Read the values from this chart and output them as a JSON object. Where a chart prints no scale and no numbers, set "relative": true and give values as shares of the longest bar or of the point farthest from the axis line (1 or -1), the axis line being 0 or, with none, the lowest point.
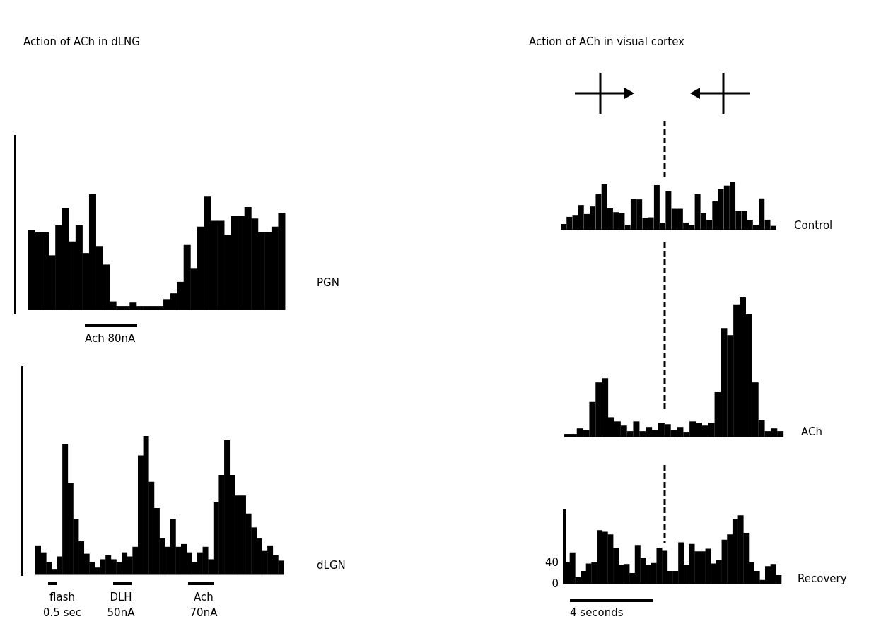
{
  "chart_data": [
    {
      "type": "bar",
      "title": "Action of ACh in dLNG",
      "relative": true,
      "tick_labels": false,
      "color": "#000000",
      "categories": [
        null,
        null,
        null,
        null,
        null,
        null,
        null,
        null,
        null,
        null,
        null,
        null,
        null,
        null,
        null,
        null,
        null,
        null,
        null,
        null,
        null,
        null,
        null,
        null,
        null,
        null,
        null,
        null,
        null,
        null,
        null,
        null,
        null,
        null,
        null,
        null,
        null,
        null
      ],
      "values": [
        0.69,
        0.67,
        0.67,
        0.47,
        0.73,
        0.88,
        0.59,
        0.73,
        0.49,
        1,
        0.55,
        0.39,
        0.07,
        0.03,
        0.03,
        0.06,
        0.03,
        0.03,
        0.03,
        0.03,
        0.09,
        0.14,
        0.24,
        0.56,
        0.36,
        0.72,
        0.98,
        0.77,
        0.77,
        0.65,
        0.81,
        0.81,
        0.89,
        0.79,
        0.67,
        0.67,
        0.72,
        0.84
      ],
      "annotations": [
        "PGN",
        "Ach 80nA"
      ]
    },
    {
      "type": "bar",
      "relative": true,
      "tick_labels": false,
      "color": "#000000",
      "categories": [
        null,
        null,
        null,
        null,
        null,
        null,
        null,
        null,
        null,
        null,
        null,
        null,
        null,
        null,
        null,
        null,
        null,
        null,
        null,
        null,
        null,
        null,
        null,
        null,
        null,
        null,
        null,
        null,
        null,
        null,
        null,
        null,
        null,
        null,
        null,
        null,
        null,
        null,
        null,
        null,
        null,
        null,
        null,
        null,
        null,
        null
      ],
      "values": [
        0.21,
        0.16,
        0.09,
        0.04,
        0.13,
        0.94,
        0.66,
        0.4,
        0.24,
        0.15,
        0.09,
        0.05,
        0.11,
        0.14,
        0.11,
        0.09,
        0.16,
        0.13,
        0.2,
        0.86,
        1,
        0.67,
        0.48,
        0.26,
        0.2,
        0.4,
        0.2,
        0.22,
        0.16,
        0.09,
        0.16,
        0.2,
        0.11,
        0.52,
        0.72,
        0.97,
        0.72,
        0.57,
        0.57,
        0.44,
        0.34,
        0.26,
        0.17,
        0.21,
        0.14,
        0.1
      ],
      "annotations": [
        "dLGN",
        "flash 0.5 sec",
        "DLH 50nA",
        "Ach 70nA"
      ]
    },
    {
      "type": "bar",
      "title": "Action of ACh in visual cortex",
      "relative": true,
      "tick_labels": false,
      "color": "#000000",
      "categories": [
        null,
        null,
        null,
        null,
        null,
        null,
        null,
        null,
        null,
        null,
        null,
        null,
        null,
        null,
        null,
        null,
        null,
        null,
        null,
        null,
        null,
        null,
        null,
        null,
        null,
        null,
        null,
        null,
        null,
        null,
        null,
        null,
        null,
        null,
        null,
        null,
        null
      ],
      "values": [
        0.12,
        0.27,
        0.31,
        0.52,
        0.33,
        0.49,
        0.76,
        0.96,
        0.45,
        0.37,
        0.35,
        0.1,
        0.65,
        0.64,
        0.25,
        0.26,
        0.94,
        0.15,
        0.81,
        0.44,
        0.44,
        0.15,
        0.1,
        0.75,
        0.35,
        0.2,
        0.6,
        0.86,
        0.93,
        1,
        0.39,
        0.39,
        0.2,
        0.1,
        0.66,
        0.21,
        0.08
      ],
      "annotations": [
        "Control"
      ]
    },
    {
      "type": "bar",
      "relative": true,
      "tick_labels": false,
      "color": "#000000",
      "categories": [
        null,
        null,
        null,
        null,
        null,
        null,
        null,
        null,
        null,
        null,
        null,
        null,
        null,
        null,
        null,
        null,
        null,
        null,
        null,
        null,
        null,
        null,
        null,
        null,
        null,
        null,
        null,
        null,
        null,
        null,
        null,
        null,
        null,
        null,
        null
      ],
      "values": [
        0.02,
        0.02,
        0.06,
        0.05,
        0.25,
        0.39,
        0.42,
        0.14,
        0.11,
        0.08,
        0.04,
        0.11,
        0.04,
        0.07,
        0.05,
        0.1,
        0.09,
        0.05,
        0.07,
        0.03,
        0.11,
        0.1,
        0.08,
        0.1,
        0.32,
        0.78,
        0.73,
        0.95,
        1,
        0.88,
        0.39,
        0.12,
        0.04,
        0.06,
        0.04
      ],
      "annotations": [
        "ACh"
      ]
    },
    {
      "type": "bar",
      "tick_labels": "y",
      "color": "#000000",
      "ylim": [
        0,
        140
      ],
      "yticks": [
        0,
        40
      ],
      "categories": [
        null,
        null,
        null,
        null,
        null,
        null,
        null,
        null,
        null,
        null,
        null,
        null,
        null,
        null,
        null,
        null,
        null,
        null,
        null,
        null,
        null,
        null,
        null,
        null,
        null,
        null,
        null,
        null,
        null,
        null,
        null,
        null,
        null,
        null,
        null,
        null,
        null,
        null,
        null,
        null
      ],
      "values": [
        40,
        59,
        12,
        24,
        38,
        40,
        101,
        98,
        93,
        67,
        36,
        37,
        20,
        73,
        49,
        36,
        39,
        68,
        62,
        24,
        24,
        78,
        36,
        75,
        61,
        61,
        66,
        38,
        44,
        83,
        93,
        122,
        129,
        96,
        40,
        24,
        7,
        33,
        37,
        16
      ],
      "annotations": [
        "Recovery",
        "4 seconds"
      ]
    }
  ]
}
